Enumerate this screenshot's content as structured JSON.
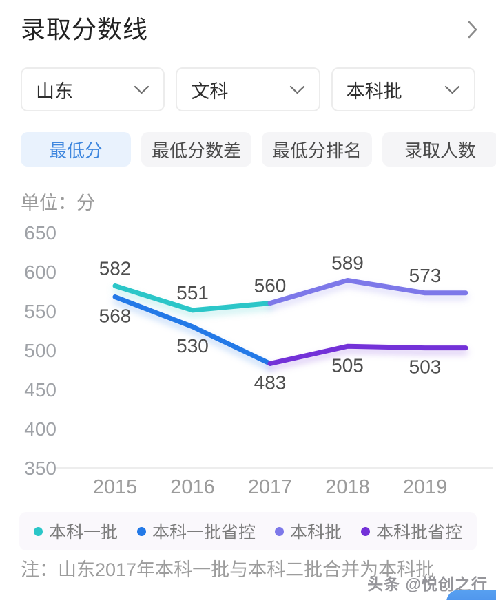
{
  "header": {
    "title": "录取分数线"
  },
  "filters": {
    "province": {
      "value": "山东"
    },
    "subject": {
      "value": "文科"
    },
    "batch": {
      "value": "本科批"
    }
  },
  "tabs": [
    {
      "label": "最低分",
      "active": true
    },
    {
      "label": "最低分数差",
      "active": false
    },
    {
      "label": "最低分排名",
      "active": false
    },
    {
      "label": "录取人数",
      "active": false
    }
  ],
  "chart_data": {
    "type": "line",
    "unit_label": "单位：分",
    "x_categories": [
      "2015",
      "2016",
      "2017",
      "2018",
      "2019"
    ],
    "ylim": [
      350,
      650
    ],
    "y_ticks": [
      650,
      600,
      550,
      500,
      450,
      400,
      350
    ],
    "grid": false,
    "legend_position": "bottom",
    "series": [
      {
        "name": "本科一批",
        "color": "#2bc6c8",
        "points": [
          {
            "x": "2015",
            "y": 582,
            "label_pos": "above"
          },
          {
            "x": "2016",
            "y": 551,
            "label_pos": "above"
          },
          {
            "x": "2017",
            "y": 560,
            "label_pos": "above"
          }
        ]
      },
      {
        "name": "本科一批省控",
        "color": "#2379e7",
        "points": [
          {
            "x": "2015",
            "y": 568,
            "label_pos": "below"
          },
          {
            "x": "2016",
            "y": 530,
            "label_pos": "below"
          },
          {
            "x": "2017",
            "y": 483,
            "label_pos": "below"
          }
        ]
      },
      {
        "name": "本科批",
        "color": "#7d78e9",
        "extend_right": true,
        "points": [
          {
            "x": "2017",
            "y": 560,
            "label_pos": "none"
          },
          {
            "x": "2018",
            "y": 589,
            "label_pos": "above"
          },
          {
            "x": "2019",
            "y": 573,
            "label_pos": "above"
          }
        ]
      },
      {
        "name": "本科批省控",
        "color": "#7331d8",
        "extend_right": true,
        "points": [
          {
            "x": "2017",
            "y": 483,
            "label_pos": "none"
          },
          {
            "x": "2018",
            "y": 505,
            "label_pos": "below"
          },
          {
            "x": "2019",
            "y": 503,
            "label_pos": "below"
          }
        ]
      }
    ],
    "legend": [
      {
        "name": "本科一批",
        "color": "#2bc6c8"
      },
      {
        "name": "本科一批省控",
        "color": "#2379e7"
      },
      {
        "name": "本科批",
        "color": "#7d78e9"
      },
      {
        "name": "本科批省控",
        "color": "#7331d8"
      }
    ]
  },
  "note": "注：山东2017年本科一批与本科二批合并为本科批",
  "watermark": "头条 @悦创之行",
  "colors": {
    "active_tab_bg": "#e9f2fd",
    "active_tab_text": "#3f87de",
    "inactive_tab_bg": "#f5f5f7",
    "axis_text": "#9b9b9b",
    "data_label_text": "#4e4e4e",
    "legend_band_bg": "#faf8fc",
    "corner_button_blue": "#4a90ec"
  }
}
